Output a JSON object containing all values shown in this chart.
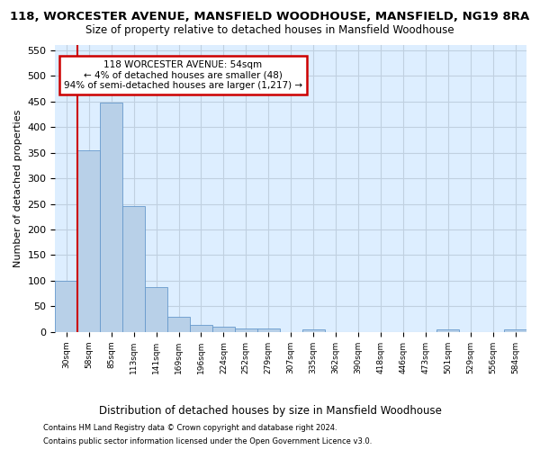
{
  "title": "118, WORCESTER AVENUE, MANSFIELD WOODHOUSE, MANSFIELD, NG19 8RA",
  "subtitle": "Size of property relative to detached houses in Mansfield Woodhouse",
  "xlabel": "Distribution of detached houses by size in Mansfield Woodhouse",
  "ylabel": "Number of detached properties",
  "footer1": "Contains HM Land Registry data © Crown copyright and database right 2024.",
  "footer2": "Contains public sector information licensed under the Open Government Licence v3.0.",
  "bin_labels": [
    "30sqm",
    "58sqm",
    "85sqm",
    "113sqm",
    "141sqm",
    "169sqm",
    "196sqm",
    "224sqm",
    "252sqm",
    "279sqm",
    "307sqm",
    "335sqm",
    "362sqm",
    "390sqm",
    "418sqm",
    "446sqm",
    "473sqm",
    "501sqm",
    "529sqm",
    "556sqm",
    "584sqm"
  ],
  "bar_values": [
    100,
    355,
    448,
    245,
    88,
    30,
    14,
    10,
    6,
    6,
    0,
    5,
    0,
    0,
    0,
    0,
    0,
    5,
    0,
    0,
    5
  ],
  "bar_color": "#b8d0e8",
  "bar_edge_color": "#6699cc",
  "annotation_text": "118 WORCESTER AVENUE: 54sqm\n← 4% of detached houses are smaller (48)\n94% of semi-detached houses are larger (1,217) →",
  "annotation_box_color": "#ffffff",
  "annotation_box_edge": "#cc0000",
  "vline_color": "#cc0000",
  "grid_color": "#c0d0e0",
  "bg_color": "#ddeeff",
  "fig_bg_color": "#ffffff",
  "ylim": [
    0,
    560
  ],
  "yticks": [
    0,
    50,
    100,
    150,
    200,
    250,
    300,
    350,
    400,
    450,
    500,
    550
  ],
  "vline_x": 0.5
}
